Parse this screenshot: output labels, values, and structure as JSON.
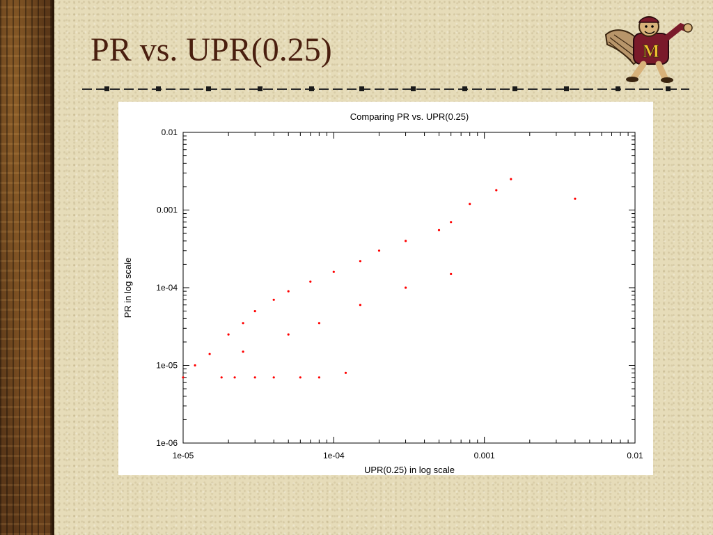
{
  "slide": {
    "title": "PR vs. UPR(0.25)"
  },
  "colors": {
    "title": "#4a1f0f",
    "points": "#ff0000",
    "sidebar": "#5a3718"
  },
  "icons": {
    "mascot": "gopher-mascot-icon"
  },
  "chart_data": {
    "type": "scatter",
    "title": "Comparing PR vs. UPR(0.25)",
    "xlabel": "UPR(0.25) in log scale",
    "ylabel": "PR in log scale",
    "xscale": "log",
    "yscale": "log",
    "xlim": [
      1e-05,
      0.01
    ],
    "ylim": [
      1e-06,
      0.01
    ],
    "x_ticks": [
      "1e-05",
      "1e-04",
      "0.001",
      "0.01"
    ],
    "y_ticks": [
      "1e-06",
      "1e-05",
      "1e-04",
      "0.001",
      "0.01"
    ],
    "grid": false,
    "legend": "none",
    "point_color": "#ff0000",
    "series": [
      {
        "x": [
          1e-05,
          1.2e-05,
          1.5e-05,
          2e-05,
          2.5e-05,
          3e-05,
          4e-05,
          5e-05,
          7e-05,
          0.0001,
          0.00015,
          0.0002,
          0.0003,
          0.0005,
          0.0006,
          0.0008,
          0.0012,
          0.0015,
          0.004,
          1.8e-05,
          2.2e-05,
          3e-05,
          4e-05,
          6e-05,
          8e-05,
          0.00012,
          2.5e-05,
          5e-05,
          8e-05,
          0.00015,
          0.0003,
          0.0006
        ],
        "y": [
          7e-06,
          1e-05,
          1.4e-05,
          2.5e-05,
          3.5e-05,
          5e-05,
          7e-05,
          9e-05,
          0.00012,
          0.00016,
          0.00022,
          0.0003,
          0.0004,
          0.00055,
          0.0007,
          0.0012,
          0.0018,
          0.0025,
          0.0014,
          7e-06,
          7e-06,
          7e-06,
          7e-06,
          7e-06,
          7e-06,
          8e-06,
          1.5e-05,
          2.5e-05,
          3.5e-05,
          6e-05,
          0.0001,
          0.00015
        ]
      }
    ]
  }
}
